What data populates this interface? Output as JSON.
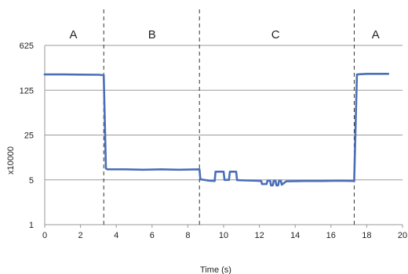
{
  "chart_data": {
    "type": "line",
    "title": "",
    "xlabel": "Time (s)",
    "ylabel": "x10000",
    "xlim": [
      0,
      20
    ],
    "ylim": [
      1,
      625
    ],
    "yscale": "log5",
    "xticks": [
      0,
      2,
      4,
      6,
      8,
      10,
      12,
      14,
      16,
      18,
      20
    ],
    "yticks": [
      1,
      5,
      25,
      125,
      625
    ],
    "grid": "horizontal",
    "legend": "none",
    "line_color": "#4a6fb8",
    "dividers": [
      3.3,
      8.65,
      17.3
    ],
    "regions": [
      {
        "label": "A",
        "x_center": 1.6
      },
      {
        "label": "B",
        "x_center": 6.0
      },
      {
        "label": "C",
        "x_center": 12.9
      },
      {
        "label": "A",
        "x_center": 18.5
      }
    ],
    "series": [
      {
        "x": [
          0,
          1.0,
          2.0,
          3.0,
          3.3,
          3.42,
          3.5,
          4.5,
          5.5,
          6.5,
          7.5,
          8.65,
          8.7,
          9.2,
          9.5,
          9.55,
          10.0,
          10.05,
          10.3,
          10.35,
          10.7,
          10.75,
          11.2,
          11.8,
          12.1,
          12.15,
          12.4,
          12.45,
          12.6,
          12.65,
          12.75,
          12.8,
          12.9,
          12.95,
          13.05,
          13.1,
          13.2,
          13.25,
          13.5,
          14.5,
          15.5,
          16.5,
          17.3,
          17.45,
          18.0,
          19.2
        ],
        "y": [
          220,
          220,
          219,
          218,
          215,
          7.5,
          7.3,
          7.3,
          7.2,
          7.3,
          7.2,
          7.3,
          5.1,
          4.85,
          4.8,
          6.7,
          6.7,
          5.0,
          5.0,
          6.7,
          6.7,
          4.95,
          4.9,
          4.85,
          4.8,
          4.3,
          4.3,
          4.85,
          4.85,
          4.1,
          4.1,
          4.85,
          4.85,
          4.1,
          4.1,
          4.85,
          4.85,
          4.2,
          4.75,
          4.8,
          4.8,
          4.85,
          4.8,
          220,
          225,
          225
        ]
      }
    ]
  }
}
